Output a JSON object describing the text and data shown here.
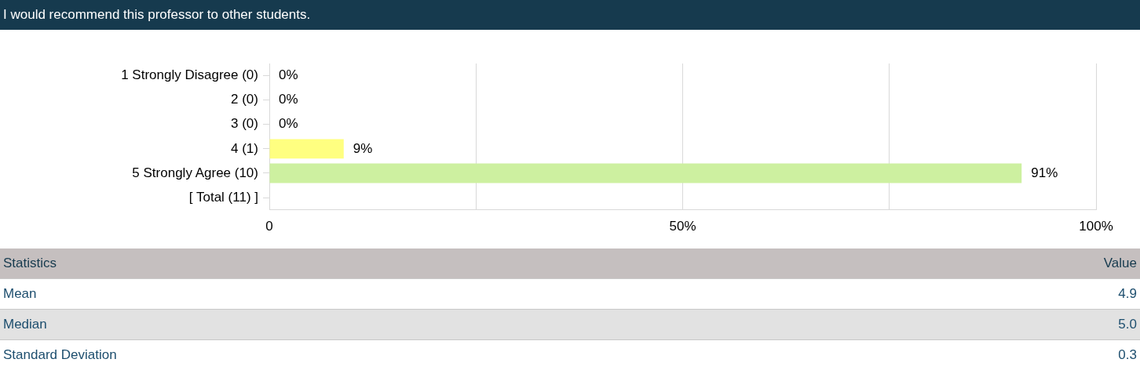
{
  "chart_data": {
    "type": "bar",
    "orientation": "horizontal",
    "title": "I would recommend this professor to other students.",
    "categories": [
      "1 Strongly Disagree (0)",
      "2 (0)",
      "3 (0)",
      "4 (1)",
      "5 Strongly Agree (10)",
      "[ Total (11) ]"
    ],
    "values": [
      0,
      0,
      0,
      9,
      91,
      null
    ],
    "colors": [
      "#cccccc",
      "#cccccc",
      "#cccccc",
      "#ffff80",
      "#cdf0a0",
      "#cccccc"
    ],
    "value_labels": [
      "0%",
      "0%",
      "0%",
      "9%",
      "91%",
      null
    ],
    "xlim": [
      0,
      100
    ],
    "xticks": [
      {
        "value": 0,
        "label": "0"
      },
      {
        "value": 25,
        "label": null
      },
      {
        "value": 50,
        "label": "50%"
      },
      {
        "value": 75,
        "label": null
      },
      {
        "value": 100,
        "label": "100%"
      }
    ],
    "grid": "x",
    "legend": false,
    "annotations": [
      "Statistics",
      "Value",
      "Mean",
      "4.9",
      "Median",
      "5.0",
      "Standard Deviation",
      "0.3"
    ]
  }
}
